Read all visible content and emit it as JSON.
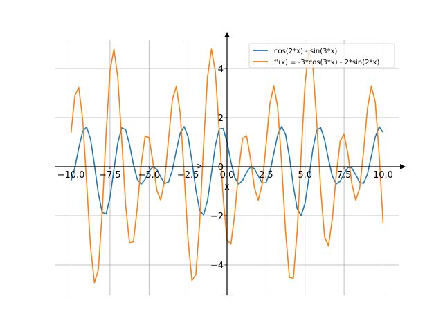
{
  "chart_data": {
    "type": "line",
    "title": "",
    "xlabel": "x",
    "ylabel": "",
    "xlim": [
      -11,
      11
    ],
    "ylim": [
      -5.24,
      5.155
    ],
    "grid": true,
    "legend_placement": "top-right",
    "xticks": [
      -10.0,
      -7.5,
      -5.0,
      -2.5,
      0.0,
      2.5,
      5.0,
      7.5,
      10.0
    ],
    "xtick_labels": [
      "−10.0",
      "−7.5",
      "−5.0",
      "−2.5",
      "0.0",
      "2.5",
      "5.0",
      "7.5",
      "10.0"
    ],
    "yticks": [
      -4,
      -2,
      0,
      2,
      4
    ],
    "ytick_labels": [
      "−4",
      "−2",
      "0",
      "2",
      "4"
    ],
    "x": [
      -10,
      -9.75,
      -9.5,
      -9.25,
      -9,
      -8.75,
      -8.5,
      -8.25,
      -8,
      -7.75,
      -7.5,
      -7.25,
      -7,
      -6.75,
      -6.5,
      -6.25,
      -6,
      -5.75,
      -5.5,
      -5.25,
      -5,
      -4.75,
      -4.5,
      -4.25,
      -4,
      -3.75,
      -3.5,
      -3.25,
      -3,
      -2.75,
      -2.5,
      -2.25,
      -2,
      -1.75,
      -1.5,
      -1.25,
      -1,
      -0.75,
      -0.5,
      -0.25,
      0,
      0.25,
      0.5,
      0.75,
      1,
      1.25,
      1.5,
      1.75,
      2,
      2.25,
      2.5,
      2.75,
      3,
      3.25,
      3.5,
      3.75,
      4,
      4.25,
      4.5,
      4.75,
      5,
      5.25,
      5.5,
      5.75,
      6,
      6.25,
      6.5,
      6.75,
      7,
      7.25,
      7.5,
      7.75,
      8,
      8.25,
      8.5,
      8.75,
      9,
      9.25,
      9.5,
      9.75,
      10
    ],
    "series": [
      {
        "name": "cos(2*x) - sin(3*x)",
        "color": "#1f77b4",
        "values": [
          -0.58,
          -0.031,
          0.766,
          1.441,
          1.616,
          1.119,
          0.084,
          -1.076,
          -1.864,
          -1.929,
          -1.248,
          -0.116,
          0.974,
          1.58,
          1.512,
          0.899,
          0.093,
          -0.517,
          -0.708,
          -0.518,
          -0.189,
          -0.003,
          -0.107,
          -0.419,
          -0.683,
          -0.621,
          -0.126,
          0.658,
          1.372,
          1.631,
          1.222,
          0.239,
          -0.933,
          -1.795,
          -1.968,
          -1.373,
          -0.275,
          0.849,
          1.537,
          1.56,
          1.0,
          0.196,
          -0.457,
          -0.707,
          -0.557,
          -0.229,
          -0.012,
          -0.077,
          -0.375,
          -0.661,
          -0.654,
          -0.213,
          0.548,
          1.296,
          1.634,
          1.315,
          0.391,
          -0.785,
          -1.715,
          -1.991,
          -1.489,
          -0.434,
          0.716,
          1.483,
          1.595,
          1.097,
          0.302,
          -0.392,
          -0.7,
          -0.594,
          -0.272,
          -0.027,
          -0.052,
          -0.328,
          -0.634,
          -0.679,
          -0.296,
          0.439,
          1.212,
          1.623,
          1.396
        ]
      },
      {
        "name": "f'(x) = -3*cos(3*x) - 2*sin(2*x)",
        "color": "#ff7f0e",
        "values": [
          1.364,
          2.896,
          3.225,
          1.914,
          -0.626,
          -3.266,
          -4.721,
          -4.208,
          -1.848,
          1.335,
          3.919,
          4.783,
          3.626,
          1.101,
          -1.548,
          -3.117,
          -3.054,
          -1.666,
          0.106,
          1.237,
          1.192,
          0.189,
          -0.958,
          -1.353,
          -0.554,
          1.12,
          2.742,
          3.274,
          2.175,
          -0.254,
          -2.959,
          -4.635,
          -4.394,
          -2.238,
          0.915,
          3.656,
          4.788,
          3.878,
          1.469,
          -1.238,
          -3.0,
          -3.154,
          -1.895,
          -0.11,
          1.152,
          1.264,
          0.351,
          -0.834,
          -1.366,
          -0.723,
          0.877,
          2.57,
          3.291,
          2.414,
          0.114,
          -2.632,
          -4.51,
          -4.545,
          -2.606,
          0.489,
          3.368,
          4.757,
          4.106,
          1.834,
          -0.906,
          -2.853,
          -3.228,
          -2.115,
          -0.338,
          1.043,
          1.319,
          0.507,
          -0.696,
          -1.36,
          -0.877,
          0.638,
          2.378,
          3.282,
          2.625,
          0.476,
          -2.288
        ]
      }
    ]
  }
}
